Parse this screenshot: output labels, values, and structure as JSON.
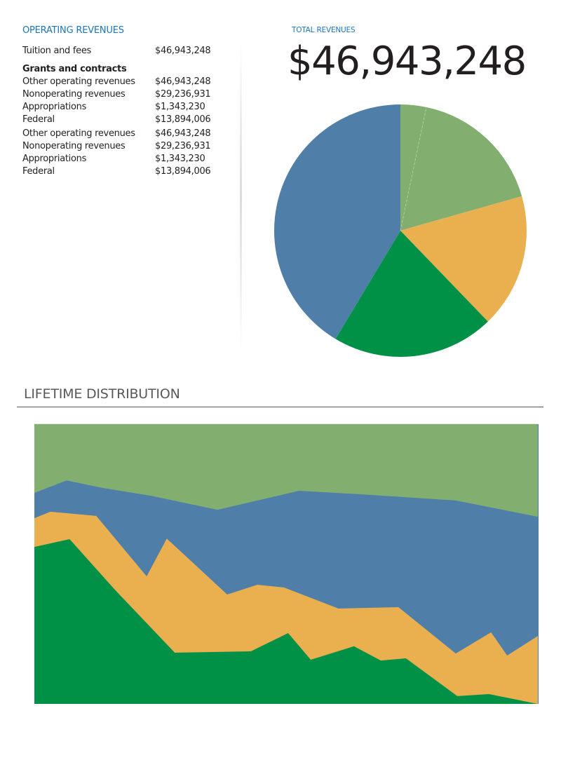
{
  "operating_revenues": {
    "title": "OPERATING REVENUES",
    "rows": [
      {
        "label": "Tuition and fees",
        "value": "$46,943,248",
        "style": "normal"
      },
      {
        "label": "Grants and contracts",
        "value": "",
        "style": "heading"
      },
      {
        "label": "Other operating revenues",
        "value": "$46,943,248",
        "style": "normal"
      },
      {
        "label": "Nonoperating revenues",
        "value": "$29,236,931",
        "style": "normal"
      },
      {
        "label": "Appropriations",
        "value": "$1,343,230",
        "style": "normal"
      },
      {
        "label": "Federal",
        "value": "$13,894,006",
        "style": "normal"
      },
      {
        "label": "Other operating revenues",
        "value": "$46,943,248",
        "style": "gap"
      },
      {
        "label": "Nonoperating revenues",
        "value": "$29,236,931",
        "style": "normal"
      },
      {
        "label": "Appropriations",
        "value": "$1,343,230",
        "style": "normal"
      },
      {
        "label": "Federal",
        "value": "$13,894,006",
        "style": "normal"
      }
    ]
  },
  "total_revenues": {
    "title": "TOTAL REVENUES",
    "value": "$46,943,248"
  },
  "lifetime": {
    "title": "LIFETIME DISTRIBUTION"
  },
  "colors": {
    "accent_blue_text": "#1b75bb",
    "light_green": "#82af6f",
    "steel_blue": "#4f7ea9",
    "orange": "#eab050",
    "green": "#009147"
  },
  "chart_data": [
    {
      "type": "pie",
      "title": "TOTAL REVENUES",
      "start_angle": "12 o'clock, clockwise",
      "slices": [
        {
          "name": "Slice 1",
          "value": 3.3,
          "color": "#82af6f"
        },
        {
          "name": "Slice 2",
          "value": 17.3,
          "color": "#82af6f"
        },
        {
          "name": "Slice 3",
          "value": 17.2,
          "color": "#eab050"
        },
        {
          "name": "Slice 4",
          "value": 20.8,
          "color": "#009147"
        },
        {
          "name": "Slice 5",
          "value": 41.4,
          "color": "#4f7ea9"
        }
      ]
    },
    {
      "type": "area",
      "title": "LIFETIME DISTRIBUTION",
      "stacked": true,
      "normalized_percent": true,
      "xlim": [
        0,
        100
      ],
      "ylim": [
        0,
        100
      ],
      "grid": false,
      "axes_visible": false,
      "series_cumulative_tops": [
        {
          "name": "Layer 1",
          "color": "#009147",
          "points": [
            [
              0,
              56.1
            ],
            [
              7.0,
              58.9
            ],
            [
              16.2,
              40.4
            ],
            [
              27.9,
              18.3
            ],
            [
              43.0,
              18.8
            ],
            [
              50.4,
              25.3
            ],
            [
              54.9,
              15.8
            ],
            [
              63.5,
              20.6
            ],
            [
              68.8,
              15.5
            ],
            [
              73.8,
              16.3
            ],
            [
              84.0,
              2.8
            ],
            [
              90.3,
              3.5
            ],
            [
              100,
              0
            ]
          ]
        },
        {
          "name": "Layer 2",
          "color": "#eab050",
          "points": [
            [
              0,
              66.4
            ],
            [
              3.2,
              68.7
            ],
            [
              12.3,
              67.2
            ],
            [
              22.3,
              45.6
            ],
            [
              26.3,
              59.1
            ],
            [
              38.3,
              39.1
            ],
            [
              44.3,
              42.6
            ],
            [
              49.6,
              41.6
            ],
            [
              60.4,
              34.1
            ],
            [
              72.3,
              34.6
            ],
            [
              83.7,
              18.0
            ],
            [
              90.7,
              25.6
            ],
            [
              93.9,
              17.3
            ],
            [
              100,
              24.3
            ]
          ]
        },
        {
          "name": "Layer 3",
          "color": "#4f7ea9",
          "points": [
            [
              0,
              75.4
            ],
            [
              6.4,
              79.9
            ],
            [
              13.6,
              77.2
            ],
            [
              23.1,
              74.4
            ],
            [
              36.4,
              69.4
            ],
            [
              52.6,
              76.2
            ],
            [
              67.0,
              74.7
            ],
            [
              83.7,
              72.7
            ],
            [
              100,
              66.9
            ]
          ]
        },
        {
          "name": "Layer 4",
          "color": "#82af6f",
          "points": [
            [
              0,
              100
            ],
            [
              100,
              100
            ]
          ]
        }
      ]
    }
  ]
}
